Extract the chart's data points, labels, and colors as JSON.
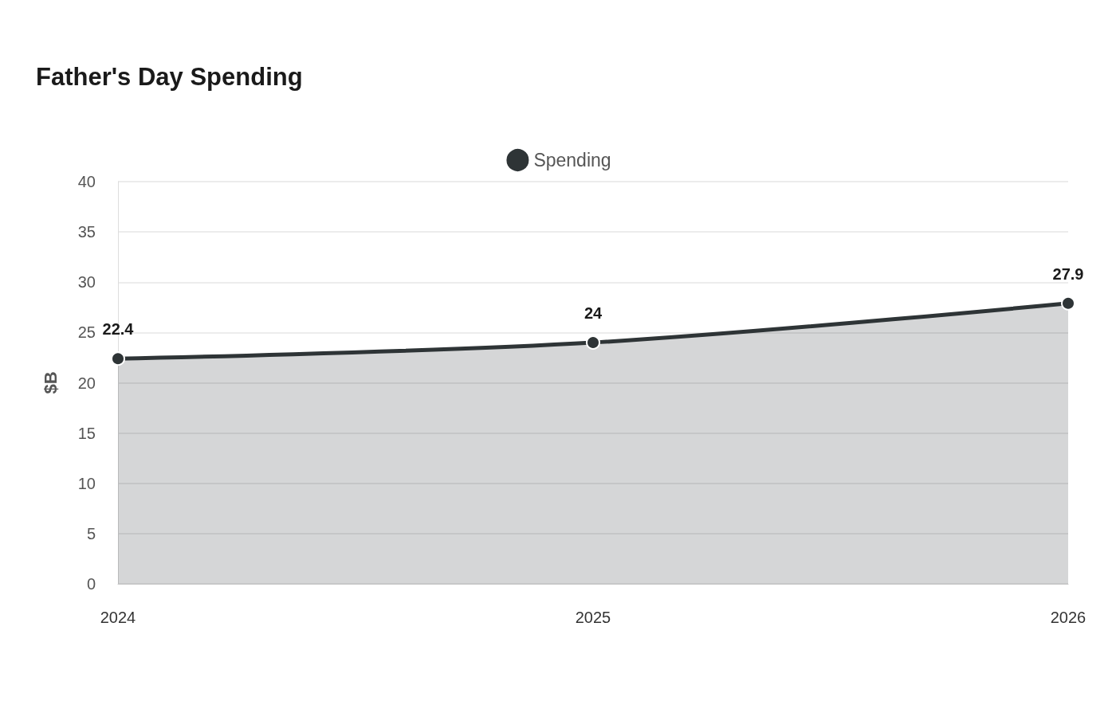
{
  "chart_data": {
    "type": "area",
    "title": "Father's Day Spending",
    "ylabel": "$B",
    "categories": [
      "2024",
      "2025",
      "2026"
    ],
    "series": [
      {
        "name": "Spending",
        "color": "#2e3436",
        "values": [
          22.4,
          24,
          27.9
        ]
      }
    ],
    "ylim": [
      0,
      40
    ],
    "yticks": [
      0,
      5,
      10,
      15,
      20,
      25,
      30,
      35,
      40
    ],
    "grid": "y",
    "legend": "top",
    "data_labels": true,
    "marker": "circle"
  }
}
